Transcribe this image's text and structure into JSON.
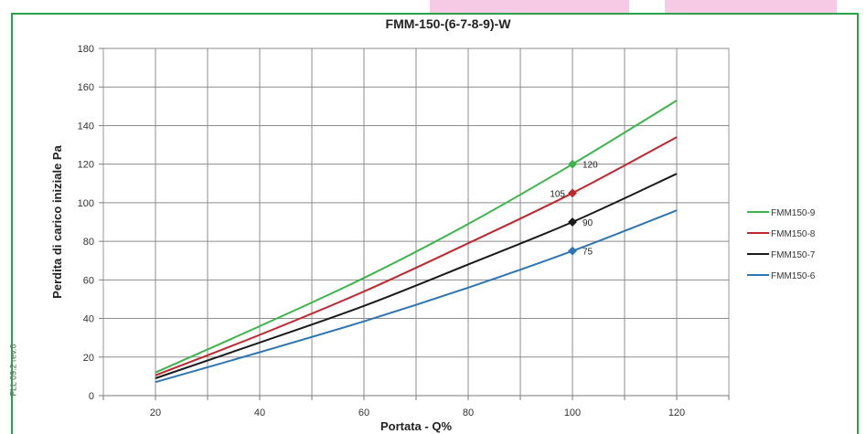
{
  "page": {
    "side_code": "FLL 09.2 rev.0"
  },
  "chart_data": {
    "type": "line",
    "title": "FMM-150-(6-7-8-9)-W",
    "xlabel": "Portata - Q%",
    "ylabel": "Perdita di carico iniziale Pa",
    "xlim": [
      10,
      130
    ],
    "ylim": [
      0,
      180
    ],
    "xticks": [
      20,
      40,
      60,
      80,
      100,
      120
    ],
    "yticks": [
      0,
      20,
      40,
      60,
      80,
      100,
      120,
      140,
      160,
      180
    ],
    "grid": true,
    "legend_position": "right",
    "series": [
      {
        "name": "FMM150-9",
        "color": "#3cb44b",
        "x": [
          20,
          40,
          60,
          80,
          100,
          120
        ],
        "y": [
          12,
          36,
          61,
          89,
          120,
          153
        ]
      },
      {
        "name": "FMM150-8",
        "color": "#c0272d",
        "x": [
          20,
          40,
          60,
          80,
          100,
          120
        ],
        "y": [
          10.5,
          31.5,
          54,
          79,
          105,
          134
        ]
      },
      {
        "name": "FMM150-7",
        "color": "#1a1a1a",
        "x": [
          20,
          40,
          60,
          80,
          100,
          120
        ],
        "y": [
          9,
          27.5,
          46.5,
          68,
          90,
          115
        ]
      },
      {
        "name": "FMM150-6",
        "color": "#2e75b6",
        "x": [
          20,
          40,
          60,
          80,
          100,
          120
        ],
        "y": [
          7,
          22.5,
          38.5,
          56,
          75,
          96
        ]
      }
    ],
    "annotations": [
      {
        "series": "FMM150-9",
        "x": 100,
        "y": 120,
        "label": "120",
        "side": "right"
      },
      {
        "series": "FMM150-8",
        "x": 100,
        "y": 105,
        "label": "105",
        "side": "left"
      },
      {
        "series": "FMM150-7",
        "x": 100,
        "y": 90,
        "label": "90",
        "side": "right"
      },
      {
        "series": "FMM150-6",
        "x": 100,
        "y": 75,
        "label": "75",
        "side": "right"
      }
    ]
  }
}
